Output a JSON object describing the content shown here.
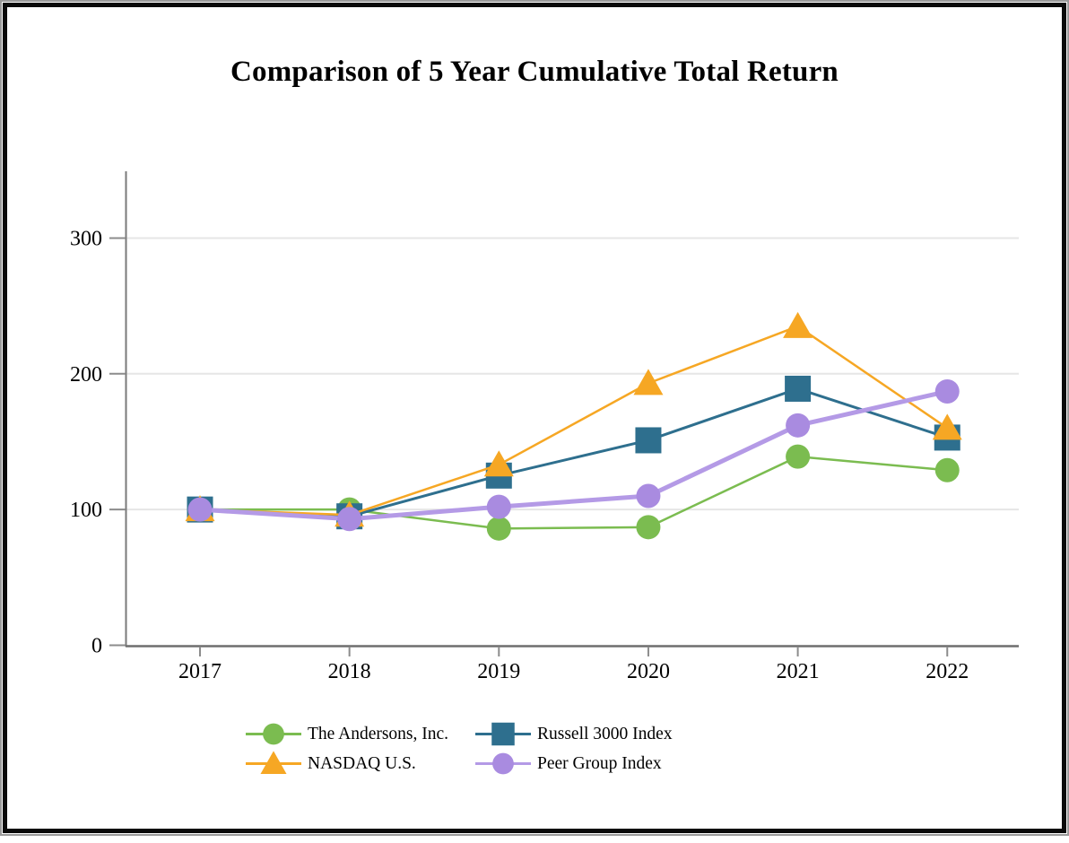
{
  "chart": {
    "title": "Comparison of 5 Year Cumulative Total Return"
  },
  "chart_data": {
    "type": "line",
    "title": "Comparison of 5 Year Cumulative Total Return",
    "x": [
      2017,
      2018,
      2019,
      2020,
      2021,
      2022
    ],
    "x_tick_labels": [
      "2017",
      "2018",
      "2019",
      "2020",
      "2021",
      "2022"
    ],
    "y_ticks": [
      0,
      100,
      200,
      300
    ],
    "y_tick_labels": [
      "0",
      "100",
      "200",
      "300"
    ],
    "ylim": [
      0,
      350
    ],
    "grid": "horizontal-only",
    "legend_position": "bottom",
    "xlabel": "",
    "ylabel": "",
    "series": [
      {
        "name": "The Andersons, Inc.",
        "marker": "circle",
        "color": "#7BBC50",
        "line_width": 2.5,
        "values": [
          100,
          100,
          86,
          87,
          139,
          129
        ]
      },
      {
        "name": "Russell 3000 Index",
        "marker": "square",
        "color": "#2E6F8E",
        "line_width": 3,
        "values": [
          100,
          95,
          125,
          151,
          189,
          153
        ]
      },
      {
        "name": "NASDAQ U.S.",
        "marker": "triangle",
        "color": "#F6A724",
        "line_width": 2.5,
        "values": [
          100,
          96,
          133,
          193,
          235,
          160
        ]
      },
      {
        "name": "Peer Group Index",
        "marker": "circle",
        "color": "#A98BE0",
        "line_color": "#B49AE6",
        "line_width": 5,
        "values": [
          100,
          93,
          102,
          110,
          162,
          187
        ]
      }
    ]
  },
  "legend": {
    "items": [
      {
        "label": "The Andersons, Inc."
      },
      {
        "label": "Russell 3000 Index"
      },
      {
        "label": "NASDAQ U.S."
      },
      {
        "label": "Peer Group Index"
      }
    ]
  },
  "colors": {
    "grid_line": "#e6e6e6",
    "axis_line": "#7a7a7a",
    "tick_mark": "#8c8c8c",
    "text": "#000000",
    "frame_border": "#0a0a0a",
    "outer_edge": "#9a9a9a"
  }
}
